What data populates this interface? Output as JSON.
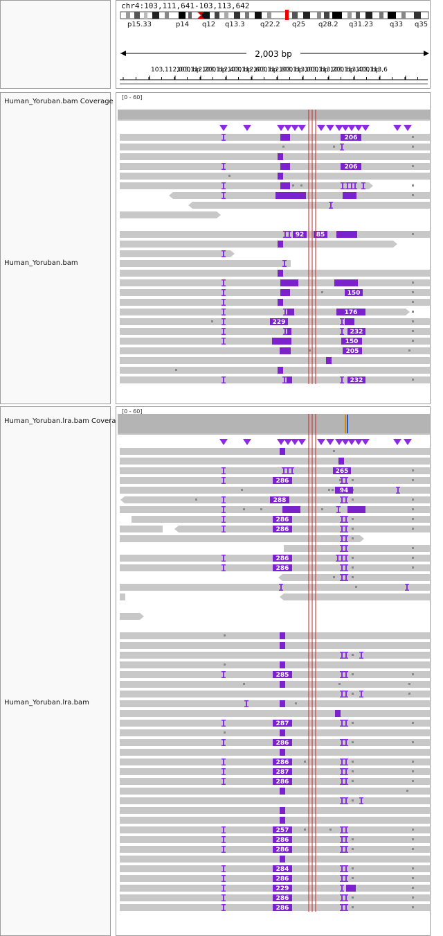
{
  "header": {
    "locus": "chr4:103,111,641-103,113,642",
    "cytobands": [
      "p15.33",
      "p14",
      "q12",
      "q13.3",
      "q22.2",
      "q25",
      "q28.2",
      "q31.23",
      "q33",
      "q35"
    ],
    "span_label": "2,003 bp",
    "ruler_ticks": [
      "103,112,000 bp",
      "103,112,200 bp",
      "103,112,400 bp",
      "103,112,600 bp",
      "103,112,800 bp",
      "103,113,000 bp",
      "103,113,200 bp",
      "103,113,400 bp",
      "103,113,6"
    ]
  },
  "tracks": [
    {
      "name": "Human_Yoruban.bam Coverage",
      "range": "[0 - 60]"
    },
    {
      "name": "Human_Yoruban.bam"
    },
    {
      "name": "Human_Yoruban.lra.bam Coverage",
      "range": "[0 - 60]"
    },
    {
      "name": "Human_Yoruban.lra.bam"
    }
  ],
  "bam1": {
    "insertion_labels": [
      "206",
      "206",
      "92",
      "85",
      "150",
      "176",
      "229",
      "232",
      "150",
      "205",
      "232"
    ]
  },
  "bam2": {
    "insertion_labels": [
      "265",
      "286",
      "94",
      "288",
      "286",
      "286",
      "286",
      "286",
      "285",
      "287",
      "286",
      "286",
      "287",
      "286",
      "257",
      "286",
      "286",
      "284",
      "286",
      "229",
      "286",
      "286"
    ]
  },
  "colors": {
    "read": "#c8c8c8",
    "insertion": "#8a2be2",
    "insertion_box": "#7b22cc",
    "coverage": "#b4b4b4",
    "center_line": "#cc2222"
  }
}
